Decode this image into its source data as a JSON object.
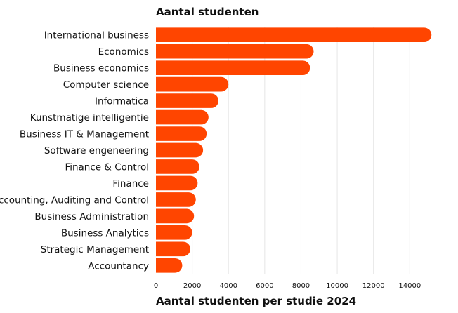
{
  "chart_data": {
    "type": "bar",
    "orientation": "horizontal",
    "title": "Aantal studenten",
    "xlabel": "Aantal studenten per studie 2024",
    "ylabel": "",
    "categories": [
      "International business",
      "Economics",
      "Business economics",
      "Computer science",
      "Informatica",
      "Kunstmatige intelligentie",
      "Business IT & Management",
      "Software engeneering",
      "Finance & Control",
      "Finance",
      "Accounting, Auditing and Control",
      "Business Administration",
      "Business Analytics",
      "Strategic Management",
      "Accountancy"
    ],
    "values": [
      15200,
      8700,
      8500,
      4000,
      3450,
      2900,
      2800,
      2600,
      2400,
      2300,
      2200,
      2100,
      2000,
      1900,
      1450
    ],
    "xlim": [
      0,
      15500
    ],
    "xticks": [
      0,
      2000,
      4000,
      6000,
      8000,
      10000,
      12000,
      14000
    ],
    "grid": "vertical",
    "bar_color": "#FF4500"
  }
}
